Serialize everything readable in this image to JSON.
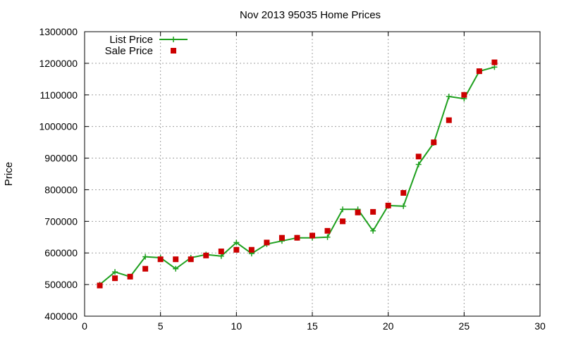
{
  "chart_data": {
    "type": "line",
    "title": "Nov 2013 95035 Home Prices",
    "xlabel": "",
    "ylabel": "Price",
    "xlim": [
      0,
      30
    ],
    "ylim": [
      400000,
      1300000
    ],
    "xticks": [
      0,
      5,
      10,
      15,
      20,
      25,
      30
    ],
    "yticks": [
      400000,
      500000,
      600000,
      700000,
      800000,
      900000,
      1000000,
      1100000,
      1200000,
      1300000
    ],
    "grid": true,
    "legend_position": "top-left",
    "series": [
      {
        "name": "List Price",
        "style": "lines+plus-markers",
        "color": "#1ea01e",
        "x": [
          1,
          2,
          3,
          4,
          5,
          6,
          7,
          8,
          9,
          10,
          11,
          12,
          13,
          14,
          15,
          16,
          17,
          18,
          19,
          20,
          21,
          22,
          23,
          24,
          25,
          26,
          27
        ],
        "y": [
          500000,
          540000,
          525000,
          588000,
          585000,
          550000,
          585000,
          595000,
          590000,
          633000,
          598000,
          628000,
          638000,
          648000,
          648000,
          650000,
          738000,
          738000,
          670000,
          750000,
          748000,
          880000,
          948000,
          1095000,
          1088000,
          1175000,
          1188000
        ]
      },
      {
        "name": "Sale Price",
        "style": "square-markers",
        "color": "#cc0000",
        "x": [
          1,
          2,
          3,
          4,
          5,
          6,
          7,
          8,
          9,
          10,
          11,
          12,
          13,
          14,
          15,
          16,
          17,
          18,
          19,
          20,
          21,
          22,
          23,
          24,
          25,
          26,
          27
        ],
        "y": [
          497000,
          520000,
          525000,
          550000,
          580000,
          580000,
          580000,
          592000,
          605000,
          610000,
          610000,
          633000,
          648000,
          648000,
          655000,
          670000,
          700000,
          728000,
          730000,
          750000,
          790000,
          905000,
          950000,
          1020000,
          1100000,
          1175000,
          1203000
        ]
      }
    ]
  }
}
